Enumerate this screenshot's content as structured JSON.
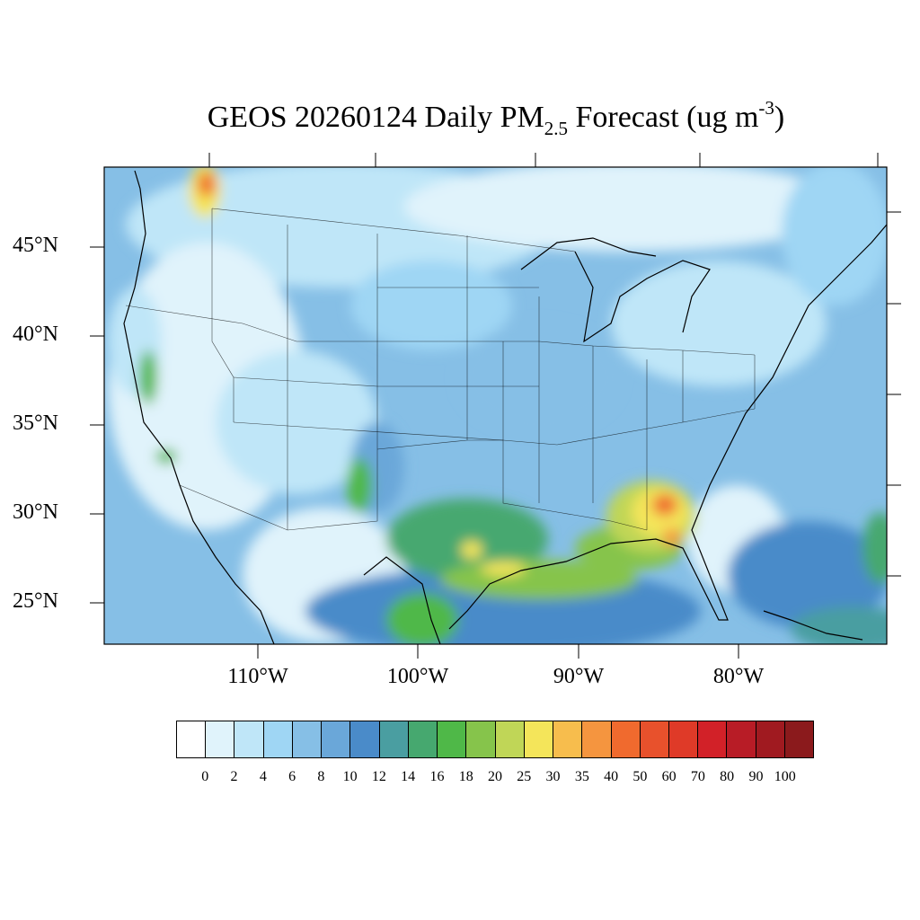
{
  "title": {
    "main": "GEOS 20260124 Daily PM",
    "subscript": "2.5",
    "middle": " Forecast (ug m",
    "superscript": "-3",
    "end": ")"
  },
  "map": {
    "lat_labels": [
      "45°N",
      "40°N",
      "35°N",
      "30°N",
      "25°N"
    ],
    "lon_labels": [
      "110°W",
      "100°W",
      "90°W",
      "80°W"
    ],
    "background_color": "#7cb7e3"
  },
  "colorbar": {
    "labels": [
      "0",
      "2",
      "4",
      "6",
      "8",
      "10",
      "12",
      "14",
      "16",
      "18",
      "20",
      "25",
      "30",
      "35",
      "40",
      "50",
      "60",
      "70",
      "80",
      "90",
      "100"
    ],
    "colors": [
      "#ffffff",
      "#e0f3fb",
      "#bfe6f8",
      "#9fd6f4",
      "#86bfe6",
      "#6aa7d9",
      "#4a8bc9",
      "#4a9ea1",
      "#46a86f",
      "#4fb848",
      "#86c44b",
      "#c0d657",
      "#f4e55a",
      "#f7bd4d",
      "#f5953f",
      "#f06a2e",
      "#e8512c",
      "#df3a28",
      "#d22128",
      "#b81c26",
      "#a01a20",
      "#8b1a1c"
    ]
  }
}
